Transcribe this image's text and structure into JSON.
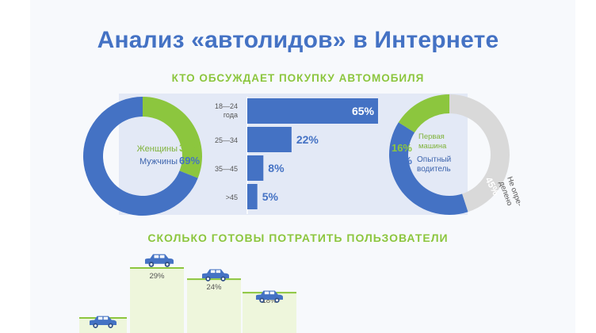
{
  "title": "Анализ «автолидов» в Интернете",
  "colors": {
    "blue": "#4472c4",
    "green": "#8cc63e",
    "grey": "#d9d9d9",
    "panel": "#e3e9f6",
    "pale_green": "#eef6dc"
  },
  "section1": {
    "heading": "КТО ОБСУЖДАЕТ ПОКУПКУ АВТОМОБИЛЯ"
  },
  "section2": {
    "heading": "СКОЛЬКО ГОТОВЫ ПОТРАТИТЬ ПОЛЬЗОВАТЕЛИ"
  },
  "chart_data": [
    {
      "type": "pie",
      "slices": [
        {
          "label": "Женщины",
          "value": 31,
          "display": "31%",
          "color": "#8cc63e"
        },
        {
          "label": "Мужчины",
          "value": 69,
          "display": "69%",
          "color": "#4472c4"
        }
      ]
    },
    {
      "type": "bar",
      "orientation": "horizontal",
      "categories": [
        "18—24 года",
        "25—34",
        "35—45",
        ">45"
      ],
      "values": [
        65,
        22,
        8,
        5
      ],
      "labels": [
        "65%",
        "22%",
        "8%",
        "5%"
      ]
    },
    {
      "type": "pie",
      "slices": [
        {
          "label": "Первая машина",
          "value": 16,
          "display": "16%",
          "color": "#8cc63e"
        },
        {
          "label": "Опытный водитель",
          "value": 39,
          "display": "39%",
          "color": "#4472c4"
        },
        {
          "label": "Не определено",
          "value": 45,
          "display": "45%",
          "color": "#d9d9d9"
        }
      ]
    },
    {
      "type": "bar",
      "values": [
        29,
        24,
        18
      ],
      "labels": [
        "29%",
        "24%",
        "18%"
      ],
      "icon": "car-icon"
    }
  ]
}
